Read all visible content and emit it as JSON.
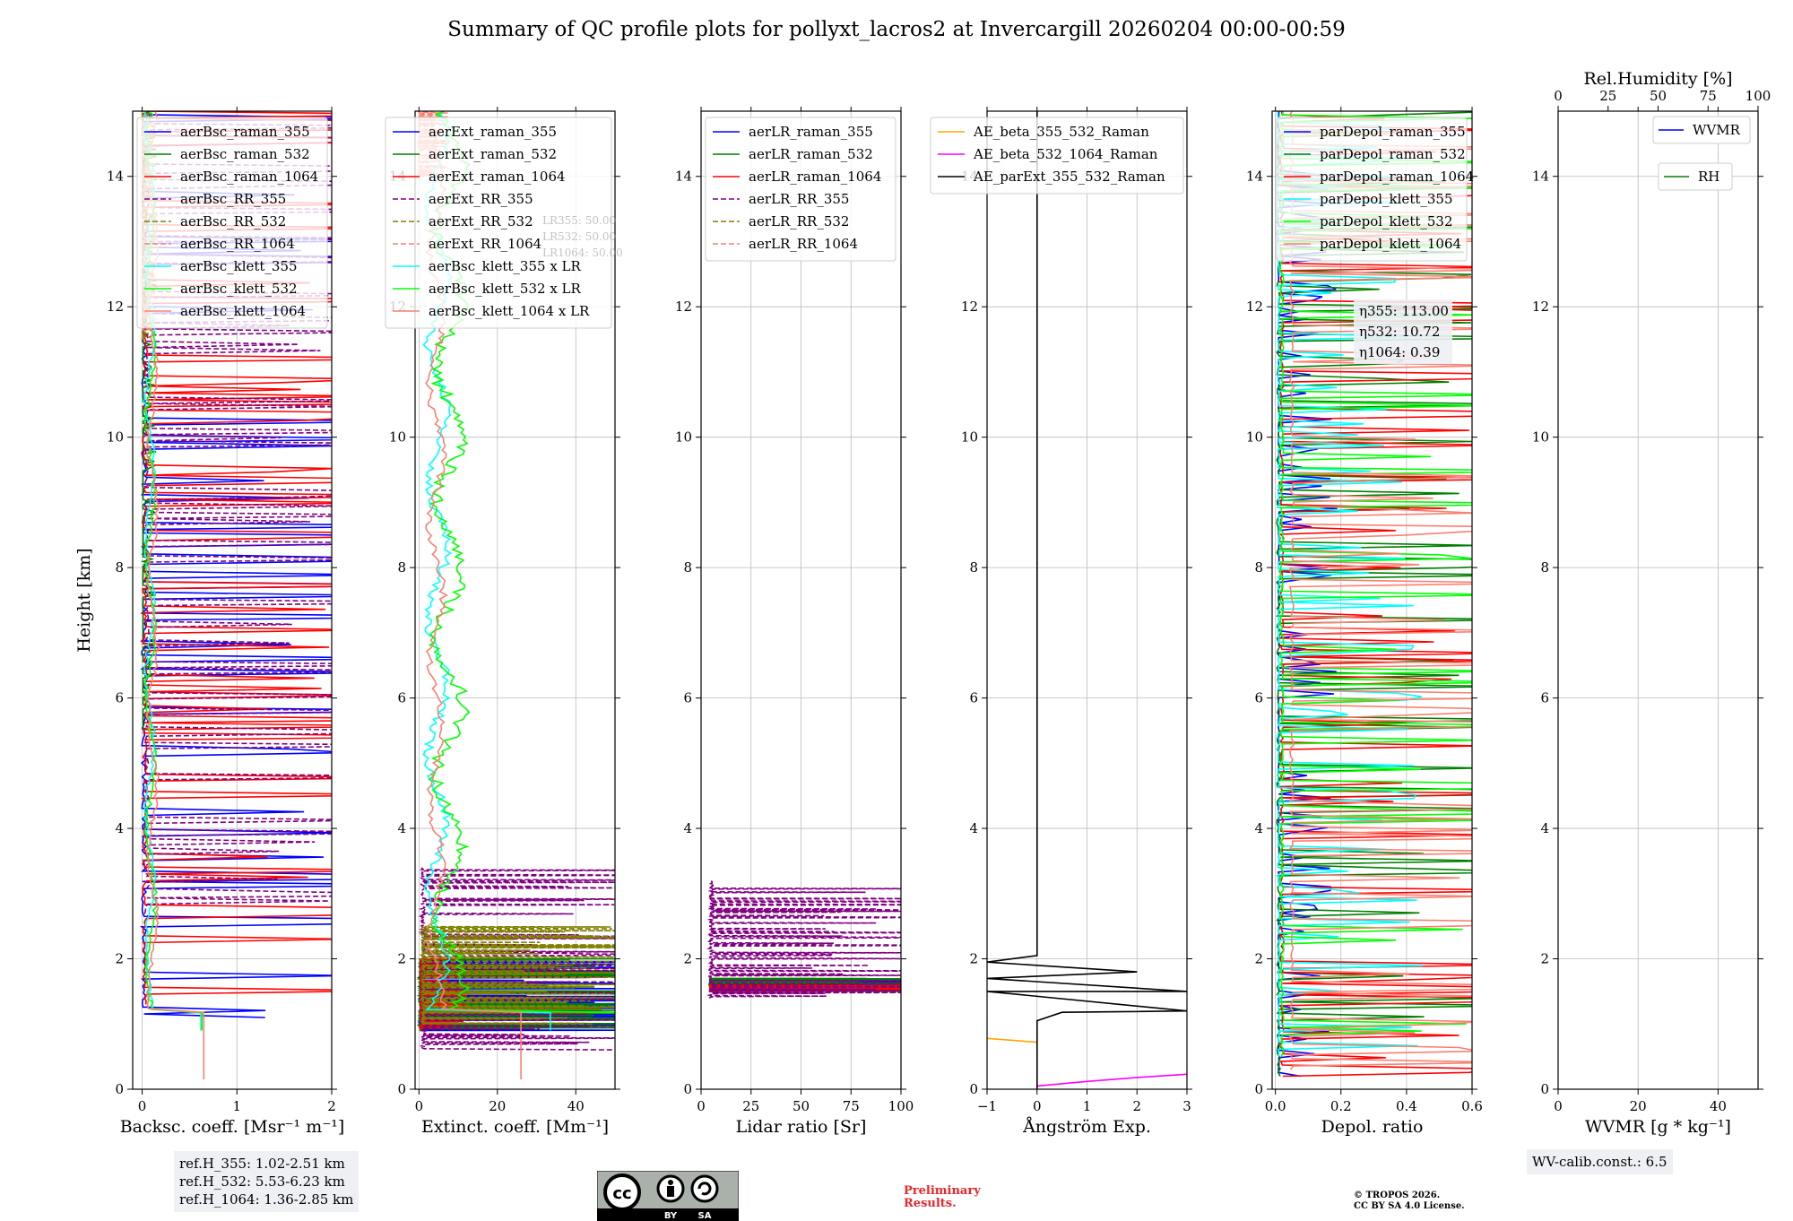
{
  "title": "Summary of QC profile plots for pollyxt_lacros2 at Invercargill 20260204 00:00-00:59",
  "y_label": "Height [km]",
  "ref_heights": [
    "ref.H_355: 1.02-2.51 km",
    "ref.H_532: 5.53-6.23 km",
    "ref.H_1064: 1.36-2.85 km"
  ],
  "wv_calib": "WV-calib.const.: 6.5",
  "preliminary": [
    "Preliminary",
    "Results."
  ],
  "copyright": [
    "© TROPOS 2026.",
    "CC BY SA 4.0 License."
  ],
  "license_badge": {
    "by": "BY",
    "sa": "SA"
  },
  "colors": {
    "c355": "#0000ff",
    "c532": "#008000",
    "c1064": "#ff0000",
    "rr": "#800080",
    "rr532": "#808000",
    "rr1064": "#fa8072",
    "k355": "#00ffff",
    "k532": "#00ff00",
    "k1064": "#fa8072",
    "ae1": "#ffa500",
    "ae2": "#ff00ff",
    "ae3": "#000000",
    "grid": "#bbbbbb"
  },
  "chart_data": [
    {
      "type": "line",
      "id": "bsc",
      "xlabel": "Backsc. coeff. [Msr⁻¹ m⁻¹]",
      "ylabel": "Height [km]",
      "xlim": [
        -0.1,
        2
      ],
      "ylim": [
        0,
        15
      ],
      "xticks": [
        0,
        1,
        2
      ],
      "yticks": [
        0,
        2,
        4,
        6,
        8,
        10,
        12,
        14
      ],
      "legend": "top-right",
      "series": [
        {
          "name": "aerBsc_raman_355",
          "color": "#0000ff",
          "dash": false,
          "mode": "noisy",
          "base": 0.02,
          "amp": 2.5,
          "from": 1.1,
          "to": 15,
          "seed": 11
        },
        {
          "name": "aerBsc_raman_532",
          "color": "#008000",
          "dash": false,
          "mode": "noisy",
          "base": 0.01,
          "amp": 0.1,
          "from": 5.5,
          "to": 15,
          "seed": 12
        },
        {
          "name": "aerBsc_raman_1064",
          "color": "#ff0000",
          "dash": false,
          "mode": "noisy",
          "base": 0.03,
          "amp": 2.5,
          "from": 1.3,
          "to": 15,
          "seed": 13
        },
        {
          "name": "aerBsc_RR_355",
          "color": "#800080",
          "dash": true,
          "mode": "noisy",
          "base": 0.05,
          "amp": 2.5,
          "from": 2.6,
          "to": 15,
          "seed": 14
        },
        {
          "name": "aerBsc_RR_532",
          "color": "#808000",
          "dash": true,
          "mode": "noisy",
          "base": 0.0,
          "amp": 0.1,
          "from": 11.5,
          "to": 15,
          "seed": 15
        },
        {
          "name": "aerBsc_RR_1064",
          "color": "#fa8072",
          "dash": true,
          "mode": "noisy",
          "base": 0.0,
          "amp": 0.1,
          "from": 11.5,
          "to": 15,
          "seed": 16
        },
        {
          "name": "aerBsc_klett_355",
          "color": "#00ffff",
          "dash": false,
          "mode": "klett",
          "base": 0.02,
          "amp": 0.15,
          "from": 0.9,
          "to": 15,
          "seed": 17
        },
        {
          "name": "aerBsc_klett_532",
          "color": "#00ff00",
          "dash": false,
          "mode": "klett",
          "base": 0.03,
          "amp": 0.15,
          "from": 0.9,
          "to": 15,
          "seed": 18
        },
        {
          "name": "aerBsc_klett_1064",
          "color": "#fa8072",
          "dash": false,
          "mode": "klett",
          "base": 0.05,
          "amp": 0.15,
          "from": 0.15,
          "to": 15,
          "seed": 19
        }
      ]
    },
    {
      "type": "line",
      "id": "ext",
      "xlabel": "Extinct. coeff. [Mm⁻¹]",
      "ylabel": "",
      "xlim": [
        -1,
        50
      ],
      "ylim": [
        0,
        15
      ],
      "xticks": [
        0,
        20,
        40
      ],
      "yticks": [
        0,
        2,
        4,
        6,
        8,
        10,
        12,
        14
      ],
      "legend": "top-right",
      "lr_note": [
        "LR355: 50.00",
        "LR532: 50.00",
        "LR1064: 50.00"
      ],
      "series": [
        {
          "name": "aerExt_raman_355",
          "color": "#0000ff",
          "dash": false,
          "mode": "noisy",
          "base": 0.5,
          "amp": 50,
          "from": 0.9,
          "to": 2.0,
          "seed": 21
        },
        {
          "name": "aerExt_raman_532",
          "color": "#008000",
          "dash": false,
          "mode": "noisy",
          "base": 0.5,
          "amp": 50,
          "from": 0.9,
          "to": 2.0,
          "seed": 22
        },
        {
          "name": "aerExt_raman_1064",
          "color": "#ff0000",
          "dash": false,
          "mode": "noisy",
          "base": 0.5,
          "amp": 8,
          "from": 0.9,
          "to": 2.0,
          "seed": 23
        },
        {
          "name": "aerExt_RR_355",
          "color": "#800080",
          "dash": true,
          "mode": "noisy",
          "base": 1,
          "amp": 50,
          "from": 0.6,
          "to": 3.4,
          "seed": 24
        },
        {
          "name": "aerExt_RR_532",
          "color": "#808000",
          "dash": true,
          "mode": "noisy",
          "base": 1,
          "amp": 40,
          "from": 1.0,
          "to": 2.5,
          "seed": 25
        },
        {
          "name": "aerExt_RR_1064",
          "color": "#fa8072",
          "dash": true,
          "mode": "noisy",
          "base": 0,
          "amp": 5,
          "from": 14,
          "to": 15,
          "seed": 26
        },
        {
          "name": "aerBsc_klett_355 x LR",
          "color": "#00ffff",
          "dash": false,
          "mode": "klett",
          "base": 1.5,
          "amp": 8,
          "from": 0.9,
          "to": 15,
          "seed": 27
        },
        {
          "name": "aerBsc_klett_532 x LR",
          "color": "#00ff00",
          "dash": false,
          "mode": "klett",
          "base": 3,
          "amp": 12,
          "from": 0.9,
          "to": 15,
          "seed": 28
        },
        {
          "name": "aerBsc_klett_1064 x LR",
          "color": "#fa8072",
          "dash": false,
          "mode": "klett",
          "base": 2,
          "amp": 6,
          "from": 0.15,
          "to": 15,
          "seed": 29
        }
      ]
    },
    {
      "type": "line",
      "id": "lr",
      "xlabel": "Lidar ratio [Sr]",
      "ylabel": "",
      "xlim": [
        0,
        100
      ],
      "ylim": [
        0,
        15
      ],
      "xticks": [
        0,
        25,
        50,
        75,
        100
      ],
      "yticks": [
        0,
        2,
        4,
        6,
        8,
        10,
        12,
        14
      ],
      "legend": "top-right",
      "series": [
        {
          "name": "aerLR_raman_355",
          "color": "#0000ff",
          "dash": false,
          "mode": "noisy",
          "base": 5,
          "amp": 100,
          "from": 1.5,
          "to": 1.7,
          "seed": 31
        },
        {
          "name": "aerLR_raman_532",
          "color": "#008000",
          "dash": false,
          "mode": "noisy",
          "base": 5,
          "amp": 100,
          "from": 1.5,
          "to": 1.7,
          "seed": 32
        },
        {
          "name": "aerLR_raman_1064",
          "color": "#ff0000",
          "dash": false,
          "mode": "noisy",
          "base": 5,
          "amp": 100,
          "from": 1.5,
          "to": 1.6,
          "seed": 33
        },
        {
          "name": "aerLR_RR_355",
          "color": "#800080",
          "dash": true,
          "mode": "noisy",
          "base": 5,
          "amp": 100,
          "from": 1.4,
          "to": 3.2,
          "seed": 34
        },
        {
          "name": "aerLR_RR_532",
          "color": "#808000",
          "dash": true,
          "mode": "none",
          "base": 0,
          "amp": 0,
          "from": 0,
          "to": 0,
          "seed": 35
        },
        {
          "name": "aerLR_RR_1064",
          "color": "#fa8072",
          "dash": true,
          "mode": "none",
          "base": 0,
          "amp": 0,
          "from": 0,
          "to": 0,
          "seed": 36
        }
      ]
    },
    {
      "type": "line",
      "id": "ae",
      "xlabel": "Ångström Exp.",
      "ylabel": "",
      "xlim": [
        -1,
        3
      ],
      "ylim": [
        0,
        15
      ],
      "xticks": [
        -1,
        0,
        1,
        2,
        3
      ],
      "yticks": [
        0,
        2,
        4,
        6,
        8,
        10,
        12,
        14
      ],
      "legend": "top-right",
      "series": [
        {
          "name": "AE_beta_355_532_Raman",
          "color": "#ffa500",
          "dash": false,
          "mode": "points",
          "points": [
            [
              -1,
              0.78
            ],
            [
              0,
              0.72
            ]
          ]
        },
        {
          "name": "AE_beta_532_1064_Raman",
          "color": "#ff00ff",
          "dash": false,
          "mode": "points",
          "points": [
            [
              0,
              0.05
            ],
            [
              1,
              0.12
            ],
            [
              2,
              0.18
            ],
            [
              3,
              0.23
            ]
          ]
        },
        {
          "name": "AE_parExt_355_532_Raman",
          "color": "#000000",
          "dash": false,
          "mode": "points",
          "points": [
            [
              0,
              0
            ],
            [
              0,
              1.05
            ],
            [
              0.5,
              1.18
            ],
            [
              3,
              1.2
            ],
            [
              -1,
              1.5
            ],
            [
              3,
              1.5
            ],
            [
              -1,
              1.7
            ],
            [
              2,
              1.8
            ],
            [
              -1,
              1.95
            ],
            [
              0,
              2.05
            ],
            [
              0,
              15
            ]
          ]
        }
      ]
    },
    {
      "type": "line",
      "id": "depol",
      "xlabel": "Depol. ratio",
      "ylabel": "",
      "xlim": [
        -0.01,
        0.6
      ],
      "ylim": [
        0,
        15
      ],
      "xticks": [
        0.0,
        0.2,
        0.4,
        0.6
      ],
      "yticks": [
        0,
        2,
        4,
        6,
        8,
        10,
        12,
        14
      ],
      "legend": "top-right",
      "eta": [
        "η355: 113.00",
        "η532: 10.72",
        "η1064: 0.39"
      ],
      "series": [
        {
          "name": "parDepol_raman_355",
          "color": "#0000ff",
          "dash": false,
          "mode": "noisy",
          "base": 0.01,
          "amp": 0.12,
          "from": 0.2,
          "to": 15,
          "seed": 51
        },
        {
          "name": "parDepol_raman_532",
          "color": "#008000",
          "dash": false,
          "mode": "noisy",
          "base": 0.01,
          "amp": 0.6,
          "from": 0.2,
          "to": 15,
          "seed": 52
        },
        {
          "name": "parDepol_raman_1064",
          "color": "#ff0000",
          "dash": false,
          "mode": "noisy",
          "base": 0.02,
          "amp": 0.6,
          "from": 0.2,
          "to": 15,
          "seed": 53
        },
        {
          "name": "parDepol_klett_355",
          "color": "#00ffff",
          "dash": false,
          "mode": "noisy",
          "base": 0.01,
          "amp": 0.3,
          "from": 0.5,
          "to": 15,
          "seed": 54
        },
        {
          "name": "parDepol_klett_532",
          "color": "#00ff00",
          "dash": false,
          "mode": "noisy",
          "base": 0.02,
          "amp": 0.6,
          "from": 0.5,
          "to": 15,
          "seed": 55
        },
        {
          "name": "parDepol_klett_1064",
          "color": "#fa8072",
          "dash": false,
          "mode": "noisy",
          "base": 0.05,
          "amp": 0.6,
          "from": 0.3,
          "to": 15,
          "seed": 56
        }
      ]
    },
    {
      "type": "line",
      "id": "wv",
      "xlabel": "WVMR [g * kg⁻¹]",
      "ylabel": "",
      "xlim": [
        0,
        50
      ],
      "ylim": [
        0,
        15
      ],
      "xticks": [
        0,
        20,
        40
      ],
      "yticks": [
        0,
        2,
        4,
        6,
        8,
        10,
        12,
        14
      ],
      "top_axis": {
        "label": "Rel.Humidity [%]",
        "lim": [
          0,
          100
        ],
        "ticks": [
          0,
          25,
          50,
          75,
          100
        ]
      },
      "legend": "top-right",
      "series": [
        {
          "name": "WVMR",
          "color": "#0000ff",
          "dash": false,
          "mode": "none"
        },
        {
          "name": "RH",
          "color": "#008000",
          "dash": false,
          "mode": "none"
        }
      ]
    }
  ]
}
